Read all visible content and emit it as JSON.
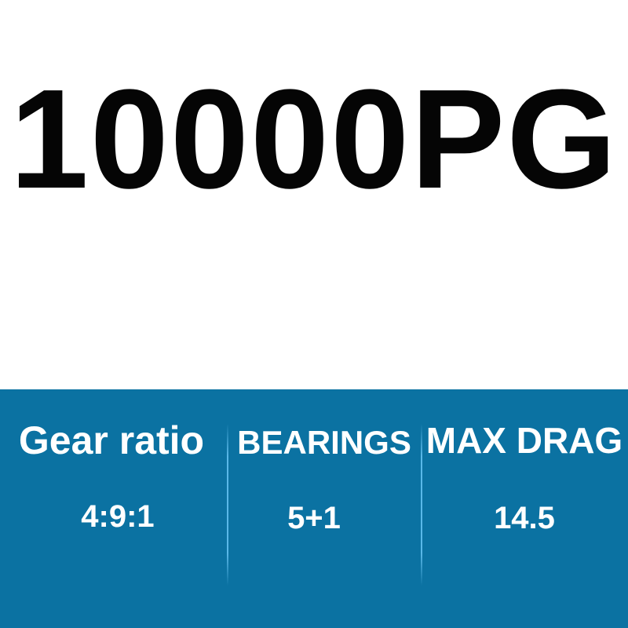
{
  "title": "10000PG",
  "banner_color": "#0b72a2",
  "specs": [
    {
      "label": "Gear ratio",
      "value": "4:9:1"
    },
    {
      "label": "BEARINGS",
      "value": "5+1"
    },
    {
      "label": "MAX DRAG",
      "value": "14.5"
    }
  ]
}
